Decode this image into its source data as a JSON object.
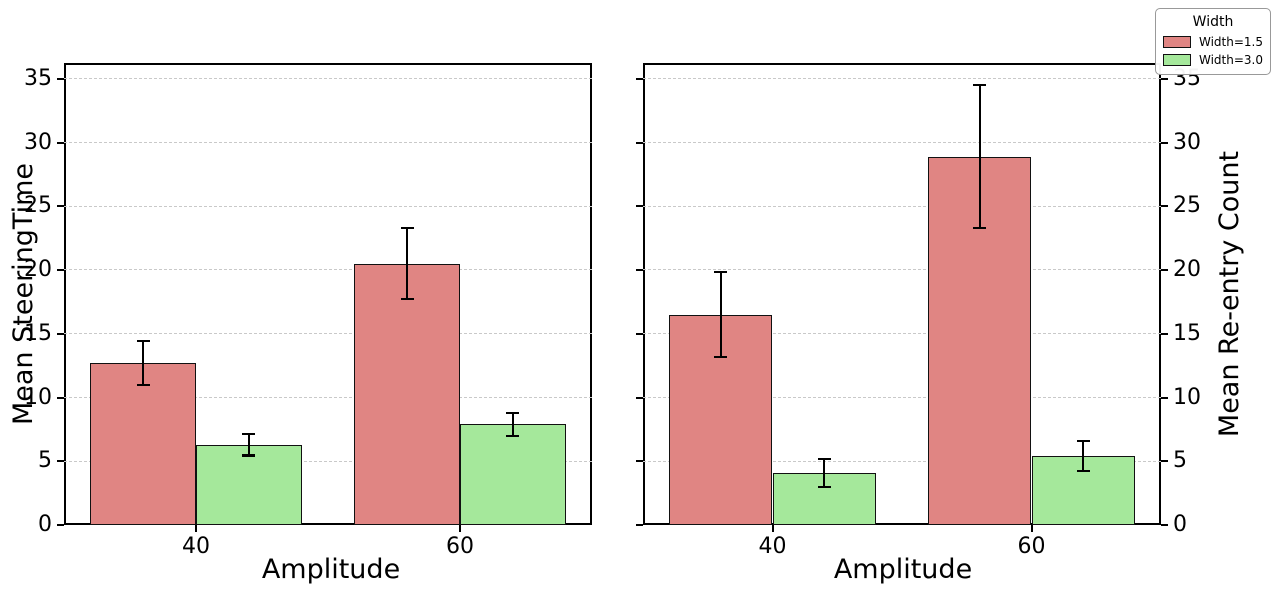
{
  "legend": {
    "title": "Width",
    "entries": [
      {
        "label": "Width=1.5",
        "color": "#e08583"
      },
      {
        "label": "Width=3.0",
        "color": "#a5e89b"
      }
    ]
  },
  "chart_data": [
    {
      "type": "bar",
      "title": "",
      "xlabel": "Amplitude",
      "ylabel": "Mean SteeringTime",
      "ylabel_side": "left",
      "categories": [
        "40",
        "60"
      ],
      "series": [
        {
          "name": "Width=1.5",
          "color": "#e08583",
          "values": [
            12.7,
            20.5
          ],
          "errors": [
            1.75,
            2.8
          ]
        },
        {
          "name": "Width=3.0",
          "color": "#a5e89b",
          "values": [
            6.3,
            7.9
          ],
          "errors": [
            0.85,
            0.9
          ]
        }
      ],
      "ylim": [
        0,
        36.25
      ],
      "yticks": [
        0,
        5,
        10,
        15,
        20,
        25,
        30,
        35
      ],
      "grid": true,
      "grid_style": "dashed",
      "legend_position": "none"
    },
    {
      "type": "bar",
      "title": "",
      "xlabel": "Amplitude",
      "ylabel": "Mean Re-entry Count",
      "ylabel_side": "right",
      "categories": [
        "40",
        "60"
      ],
      "series": [
        {
          "name": "Width=1.5",
          "color": "#e08583",
          "values": [
            16.5,
            28.9
          ],
          "errors": [
            3.35,
            5.6
          ]
        },
        {
          "name": "Width=3.0",
          "color": "#a5e89b",
          "values": [
            4.1,
            5.4
          ],
          "errors": [
            1.1,
            1.2
          ]
        }
      ],
      "ylim": [
        0,
        36.25
      ],
      "yticks": [
        0,
        5,
        10,
        15,
        20,
        25,
        30,
        35
      ],
      "grid": true,
      "grid_style": "dashed",
      "legend_position": "top-right-figure"
    }
  ]
}
